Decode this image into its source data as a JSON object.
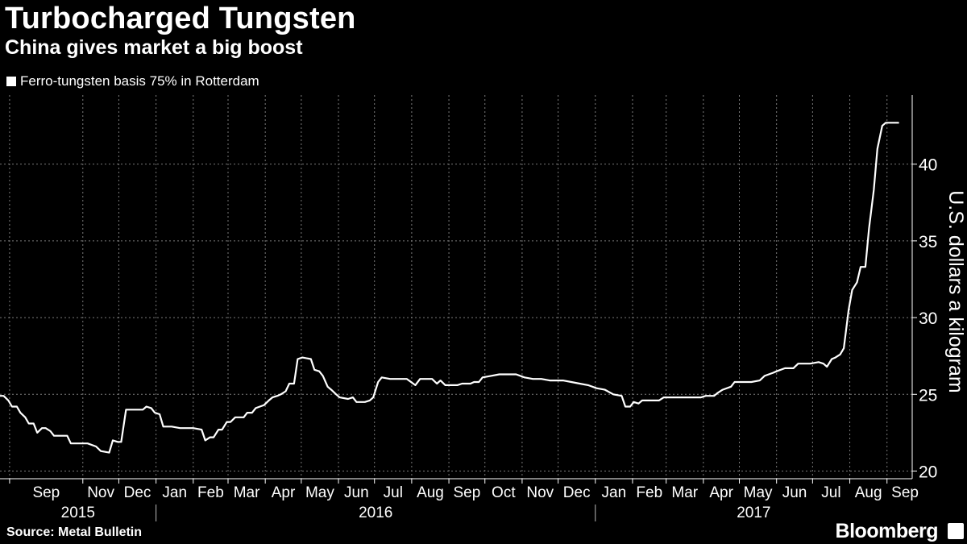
{
  "header": {
    "title": "Turbocharged Tungsten",
    "subtitle": "China gives market a big boost"
  },
  "footer": {
    "source": "Source: Metal Bulletin",
    "brand": "Bloomberg"
  },
  "colors": {
    "background": "#000000",
    "line": "#ffffff",
    "grid": "#7a7a7a"
  },
  "chart_data": {
    "type": "line",
    "title": "Turbocharged Tungsten",
    "subtitle": "China gives market a big boost",
    "ylabel": "U.S. dollars a kilogram",
    "y_axis_side": "right",
    "ylim": [
      19.5,
      44.5
    ],
    "yticks": [
      20,
      25,
      30,
      35,
      40
    ],
    "xlim": [
      "2015-08-24",
      "2017-09-22"
    ],
    "grid": true,
    "legend_position": "top-left",
    "month_ticks": [
      {
        "label": "Sep",
        "date": "2015-09-01"
      },
      {
        "label": "Nov",
        "date": "2015-11-01"
      },
      {
        "label": "Dec",
        "date": "2015-12-01"
      },
      {
        "label": "Jan",
        "date": "2016-01-01"
      },
      {
        "label": "Feb",
        "date": "2016-02-01"
      },
      {
        "label": "Mar",
        "date": "2016-03-01"
      },
      {
        "label": "Apr",
        "date": "2016-04-01"
      },
      {
        "label": "May",
        "date": "2016-05-01"
      },
      {
        "label": "Jun",
        "date": "2016-06-01"
      },
      {
        "label": "Jul",
        "date": "2016-07-01"
      },
      {
        "label": "Aug",
        "date": "2016-08-01"
      },
      {
        "label": "Sep",
        "date": "2016-09-01"
      },
      {
        "label": "Oct",
        "date": "2016-10-01"
      },
      {
        "label": "Nov",
        "date": "2016-11-01"
      },
      {
        "label": "Dec",
        "date": "2016-12-01"
      },
      {
        "label": "Jan",
        "date": "2017-01-01"
      },
      {
        "label": "Feb",
        "date": "2017-02-01"
      },
      {
        "label": "Mar",
        "date": "2017-03-01"
      },
      {
        "label": "Apr",
        "date": "2017-04-01"
      },
      {
        "label": "May",
        "date": "2017-05-01"
      },
      {
        "label": "Jun",
        "date": "2017-06-01"
      },
      {
        "label": "Jul",
        "date": "2017-07-01"
      },
      {
        "label": "Aug",
        "date": "2017-08-01"
      },
      {
        "label": "Sep",
        "date": "2017-09-01"
      }
    ],
    "year_labels": [
      {
        "label": "2015",
        "start": "2015-08-24",
        "end": "2016-01-01"
      },
      {
        "label": "2016",
        "start": "2016-01-01",
        "end": "2017-01-01"
      },
      {
        "label": "2017",
        "start": "2017-01-01",
        "end": "2017-09-22"
      }
    ],
    "series": [
      {
        "name": "Ferro-tungsten basis 75% in Rotterdam",
        "points": [
          [
            "2015-08-24",
            24.9
          ],
          [
            "2015-08-27",
            24.9
          ],
          [
            "2015-08-31",
            24.6
          ],
          [
            "2015-09-03",
            24.2
          ],
          [
            "2015-09-07",
            24.2
          ],
          [
            "2015-09-10",
            23.8
          ],
          [
            "2015-09-14",
            23.5
          ],
          [
            "2015-09-17",
            23.1
          ],
          [
            "2015-09-21",
            23.1
          ],
          [
            "2015-09-24",
            22.5
          ],
          [
            "2015-09-28",
            22.8
          ],
          [
            "2015-10-01",
            22.8
          ],
          [
            "2015-10-05",
            22.6
          ],
          [
            "2015-10-08",
            22.3
          ],
          [
            "2015-10-12",
            22.3
          ],
          [
            "2015-10-19",
            22.3
          ],
          [
            "2015-10-22",
            21.8
          ],
          [
            "2015-10-29",
            21.8
          ],
          [
            "2015-11-05",
            21.8
          ],
          [
            "2015-11-12",
            21.6
          ],
          [
            "2015-11-16",
            21.3
          ],
          [
            "2015-11-23",
            21.2
          ],
          [
            "2015-11-26",
            22.0
          ],
          [
            "2015-11-30",
            21.9
          ],
          [
            "2015-12-03",
            21.9
          ],
          [
            "2015-12-07",
            24.0
          ],
          [
            "2015-12-14",
            24.0
          ],
          [
            "2015-12-21",
            24.0
          ],
          [
            "2015-12-24",
            24.2
          ],
          [
            "2015-12-28",
            24.1
          ],
          [
            "2015-12-31",
            23.8
          ],
          [
            "2016-01-04",
            23.7
          ],
          [
            "2016-01-07",
            22.9
          ],
          [
            "2016-01-14",
            22.9
          ],
          [
            "2016-01-21",
            22.8
          ],
          [
            "2016-02-01",
            22.8
          ],
          [
            "2016-02-08",
            22.7
          ],
          [
            "2016-02-11",
            22.0
          ],
          [
            "2016-02-15",
            22.2
          ],
          [
            "2016-02-18",
            22.2
          ],
          [
            "2016-02-22",
            22.7
          ],
          [
            "2016-02-25",
            22.7
          ],
          [
            "2016-02-29",
            23.2
          ],
          [
            "2016-03-03",
            23.2
          ],
          [
            "2016-03-07",
            23.5
          ],
          [
            "2016-03-14",
            23.5
          ],
          [
            "2016-03-17",
            23.8
          ],
          [
            "2016-03-21",
            23.8
          ],
          [
            "2016-03-24",
            24.1
          ],
          [
            "2016-03-31",
            24.3
          ],
          [
            "2016-04-04",
            24.6
          ],
          [
            "2016-04-07",
            24.8
          ],
          [
            "2016-04-11",
            24.9
          ],
          [
            "2016-04-14",
            25.0
          ],
          [
            "2016-04-18",
            25.2
          ],
          [
            "2016-04-21",
            25.7
          ],
          [
            "2016-04-25",
            25.7
          ],
          [
            "2016-04-28",
            27.3
          ],
          [
            "2016-05-02",
            27.4
          ],
          [
            "2016-05-09",
            27.3
          ],
          [
            "2016-05-12",
            26.6
          ],
          [
            "2016-05-16",
            26.5
          ],
          [
            "2016-05-19",
            26.2
          ],
          [
            "2016-05-23",
            25.5
          ],
          [
            "2016-05-26",
            25.3
          ],
          [
            "2016-05-30",
            25.0
          ],
          [
            "2016-06-02",
            24.8
          ],
          [
            "2016-06-09",
            24.7
          ],
          [
            "2016-06-13",
            24.8
          ],
          [
            "2016-06-16",
            24.5
          ],
          [
            "2016-06-23",
            24.5
          ],
          [
            "2016-06-27",
            24.6
          ],
          [
            "2016-06-30",
            24.8
          ],
          [
            "2016-07-04",
            25.8
          ],
          [
            "2016-07-07",
            26.1
          ],
          [
            "2016-07-14",
            26.0
          ],
          [
            "2016-07-21",
            26.0
          ],
          [
            "2016-07-28",
            26.0
          ],
          [
            "2016-08-04",
            25.6
          ],
          [
            "2016-08-08",
            26.0
          ],
          [
            "2016-08-15",
            26.0
          ],
          [
            "2016-08-18",
            26.0
          ],
          [
            "2016-08-22",
            25.7
          ],
          [
            "2016-08-25",
            25.9
          ],
          [
            "2016-08-29",
            25.6
          ],
          [
            "2016-09-08",
            25.6
          ],
          [
            "2016-09-12",
            25.7
          ],
          [
            "2016-09-19",
            25.7
          ],
          [
            "2016-09-22",
            25.8
          ],
          [
            "2016-09-26",
            25.8
          ],
          [
            "2016-09-29",
            26.1
          ],
          [
            "2016-10-06",
            26.2
          ],
          [
            "2016-10-13",
            26.3
          ],
          [
            "2016-10-27",
            26.3
          ],
          [
            "2016-11-03",
            26.1
          ],
          [
            "2016-11-10",
            26.0
          ],
          [
            "2016-11-17",
            26.0
          ],
          [
            "2016-11-24",
            25.9
          ],
          [
            "2016-12-05",
            25.9
          ],
          [
            "2016-12-12",
            25.8
          ],
          [
            "2016-12-19",
            25.7
          ],
          [
            "2016-12-26",
            25.6
          ],
          [
            "2017-01-02",
            25.4
          ],
          [
            "2017-01-09",
            25.3
          ],
          [
            "2017-01-16",
            25.0
          ],
          [
            "2017-01-23",
            24.9
          ],
          [
            "2017-01-26",
            24.2
          ],
          [
            "2017-01-30",
            24.2
          ],
          [
            "2017-02-02",
            24.5
          ],
          [
            "2017-02-06",
            24.4
          ],
          [
            "2017-02-09",
            24.6
          ],
          [
            "2017-02-16",
            24.6
          ],
          [
            "2017-02-23",
            24.6
          ],
          [
            "2017-02-27",
            24.8
          ],
          [
            "2017-03-09",
            24.8
          ],
          [
            "2017-03-16",
            24.8
          ],
          [
            "2017-03-23",
            24.8
          ],
          [
            "2017-03-30",
            24.8
          ],
          [
            "2017-04-03",
            24.9
          ],
          [
            "2017-04-10",
            24.9
          ],
          [
            "2017-04-13",
            25.1
          ],
          [
            "2017-04-17",
            25.3
          ],
          [
            "2017-04-24",
            25.5
          ],
          [
            "2017-04-27",
            25.8
          ],
          [
            "2017-05-04",
            25.8
          ],
          [
            "2017-05-11",
            25.8
          ],
          [
            "2017-05-18",
            25.9
          ],
          [
            "2017-05-22",
            26.2
          ],
          [
            "2017-05-29",
            26.4
          ],
          [
            "2017-06-01",
            26.5
          ],
          [
            "2017-06-08",
            26.7
          ],
          [
            "2017-06-15",
            26.7
          ],
          [
            "2017-06-19",
            27.0
          ],
          [
            "2017-06-26",
            27.0
          ],
          [
            "2017-06-29",
            27.0
          ],
          [
            "2017-07-06",
            27.1
          ],
          [
            "2017-07-10",
            27.0
          ],
          [
            "2017-07-13",
            26.8
          ],
          [
            "2017-07-17",
            27.3
          ],
          [
            "2017-07-20",
            27.4
          ],
          [
            "2017-07-24",
            27.6
          ],
          [
            "2017-07-27",
            28.0
          ],
          [
            "2017-07-31",
            30.5
          ],
          [
            "2017-08-03",
            31.8
          ],
          [
            "2017-08-07",
            32.3
          ],
          [
            "2017-08-10",
            33.3
          ],
          [
            "2017-08-14",
            33.3
          ],
          [
            "2017-08-17",
            35.8
          ],
          [
            "2017-08-21",
            38.3
          ],
          [
            "2017-08-24",
            41.0
          ],
          [
            "2017-08-28",
            42.5
          ],
          [
            "2017-08-31",
            42.7
          ],
          [
            "2017-09-04",
            42.7
          ],
          [
            "2017-09-07",
            42.7
          ],
          [
            "2017-09-11",
            42.7
          ]
        ]
      }
    ]
  }
}
